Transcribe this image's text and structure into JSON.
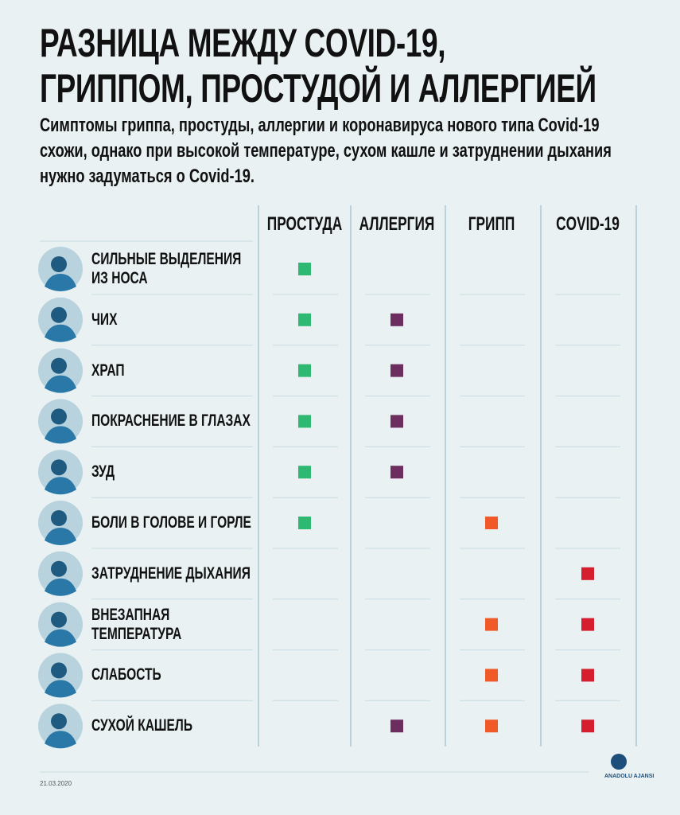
{
  "header": {
    "title": [
      "РАЗНИЦА МЕЖДУ COVID-19,",
      "ГРИППОМ, ПРОСТУДОЙ И АЛЛЕРГИЕЙ"
    ],
    "subtitle": [
      "Симптомы гриппа, простуды, аллергии и коронавируса нового типа Covid-19",
      "схожи, однако при высокой температуре, сухом кашле и затруднении дыхания",
      "нужно задуматься о Covid-19."
    ]
  },
  "table": {
    "columns": [
      {
        "label": "ПРОСТУДА",
        "color": "#2eb872"
      },
      {
        "label": "АЛЛЕРГИЯ",
        "color": "#6d2e5f"
      },
      {
        "label": "ГРИПП",
        "color": "#f05a28"
      },
      {
        "label": "COVID-19",
        "color": "#d51f2f"
      }
    ],
    "rows": [
      {
        "label": [
          "СИЛЬНЫЕ ВЫДЕЛЕНИЯ",
          "ИЗ НОСА"
        ],
        "cells": [
          true,
          false,
          false,
          false
        ]
      },
      {
        "label": [
          "ЧИХ"
        ],
        "cells": [
          true,
          true,
          false,
          false
        ]
      },
      {
        "label": [
          "ХРАП"
        ],
        "cells": [
          true,
          true,
          false,
          false
        ]
      },
      {
        "label": [
          "ПОКРАСНЕНИЕ В ГЛАЗАХ"
        ],
        "cells": [
          true,
          true,
          false,
          false
        ]
      },
      {
        "label": [
          "ЗУД"
        ],
        "cells": [
          true,
          true,
          false,
          false
        ]
      },
      {
        "label": [
          "БОЛИ В ГОЛОВЕ И ГОРЛЕ"
        ],
        "cells": [
          true,
          false,
          true,
          false
        ]
      },
      {
        "label": [
          "ЗАТРУДНЕНИЕ ДЫХАНИЯ"
        ],
        "cells": [
          false,
          false,
          false,
          true
        ]
      },
      {
        "label": [
          "ВНЕЗАПНАЯ",
          "ТЕМПЕРАТУРА"
        ],
        "cells": [
          false,
          false,
          true,
          true
        ]
      },
      {
        "label": [
          "СЛАБОСТЬ"
        ],
        "cells": [
          false,
          false,
          true,
          true
        ]
      },
      {
        "label": [
          "СУХОЙ КАШЕЛЬ"
        ],
        "cells": [
          false,
          true,
          true,
          true
        ]
      }
    ]
  },
  "footer": {
    "date": "21.03.2020",
    "logo": "ANADOLU AJANSI"
  }
}
